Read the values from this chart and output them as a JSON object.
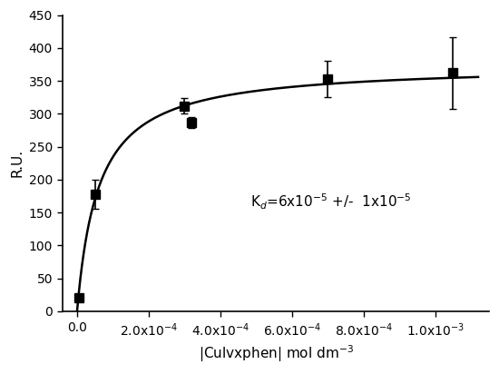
{
  "x_data": [
    5e-06,
    5e-05,
    0.0003,
    0.00032,
    0.0007,
    0.00105
  ],
  "y_data": [
    20,
    178,
    312,
    287,
    353,
    362
  ],
  "y_err": [
    5,
    22,
    12,
    8,
    28,
    55
  ],
  "Kd": 6e-05,
  "Rmax": 375,
  "xlabel": "|Culvxphen| mol dm$^{-3}$",
  "ylabel": "R.U.",
  "annotation": "K$_d$=6x10$^{-5}$ +/-  1x10$^{-5}$",
  "xlim": [
    -4e-05,
    0.00115
  ],
  "ylim": [
    0,
    450
  ],
  "xticks": [
    0.0,
    0.0002,
    0.0004,
    0.0006,
    0.0008,
    0.001
  ],
  "yticks": [
    0,
    50,
    100,
    150,
    200,
    250,
    300,
    350,
    400,
    450
  ],
  "bg_color": "#ffffff",
  "line_color": "#000000",
  "marker_color": "#000000",
  "fig_width": 5.5,
  "fig_height": 4.12
}
